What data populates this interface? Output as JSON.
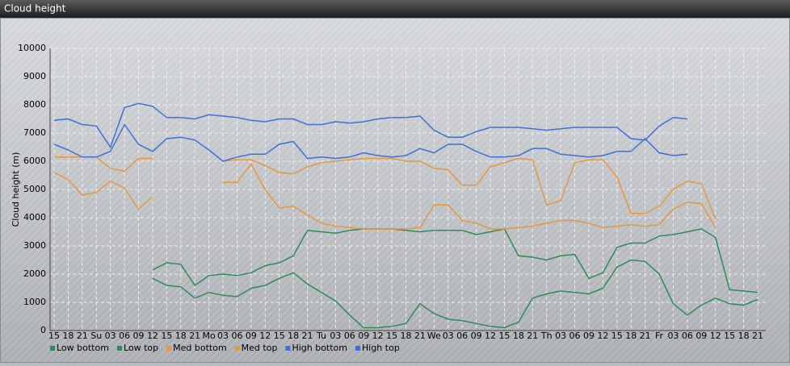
{
  "chart_data": {
    "type": "line",
    "title": "Cloud height",
    "y_label": "Cloud height (m)",
    "categories": [
      "15",
      "18",
      "21",
      "Su",
      "03",
      "06",
      "09",
      "12",
      "15",
      "18",
      "21",
      "Mo",
      "03",
      "06",
      "09",
      "12",
      "15",
      "18",
      "21",
      "Tu",
      "03",
      "06",
      "09",
      "12",
      "15",
      "18",
      "21",
      "We",
      "03",
      "06",
      "09",
      "12",
      "15",
      "18",
      "21",
      "Th",
      "03",
      "06",
      "09",
      "12",
      "15",
      "18",
      "21",
      "Fr",
      "03",
      "06",
      "09",
      "12",
      "15",
      "18",
      "21"
    ],
    "ylim": [
      0,
      10000
    ],
    "yticks": [
      0,
      1000,
      2000,
      3000,
      4000,
      5000,
      6000,
      7000,
      8000,
      9000,
      10000
    ],
    "grid": true,
    "series": [
      {
        "name": "Low bottom",
        "color": "#2e8b57",
        "values": [
          null,
          null,
          null,
          null,
          null,
          null,
          null,
          1850,
          1600,
          1550,
          1150,
          1350,
          1250,
          1200,
          1500,
          1600,
          1850,
          2050,
          1650,
          1350,
          1050,
          550,
          100,
          100,
          150,
          250,
          950,
          600,
          400,
          350,
          250,
          150,
          100,
          300,
          1150,
          1300,
          1400,
          1350,
          1300,
          1500,
          2250,
          2500,
          2450,
          2000,
          950,
          550,
          900,
          1150,
          950,
          900,
          1100
        ]
      },
      {
        "name": "Low top",
        "color": "#2e8b57",
        "values": [
          null,
          null,
          null,
          null,
          null,
          null,
          null,
          2150,
          2400,
          2350,
          1600,
          1950,
          2000,
          1950,
          2050,
          2300,
          2400,
          2650,
          3550,
          3500,
          3450,
          3550,
          3600,
          3600,
          3600,
          3550,
          3500,
          3550,
          3550,
          3550,
          3400,
          3500,
          3600,
          2650,
          2600,
          2500,
          2650,
          2700,
          1850,
          2050,
          2950,
          3100,
          3100,
          3350,
          3400,
          3500,
          3600,
          3300,
          1450,
          1400,
          1350
        ]
      },
      {
        "name": "Med bottom",
        "color": "#e8963c",
        "values": [
          5600,
          5350,
          4800,
          4900,
          5300,
          5050,
          4300,
          4750,
          null,
          null,
          null,
          null,
          5250,
          5250,
          5900,
          5000,
          4350,
          4400,
          4100,
          3800,
          3700,
          3650,
          3600,
          3600,
          3600,
          3600,
          3650,
          4450,
          4450,
          3900,
          3800,
          3600,
          3600,
          3650,
          3700,
          3800,
          3900,
          3900,
          3800,
          3650,
          3700,
          3750,
          3700,
          3750,
          4300,
          4550,
          4500,
          3650,
          null,
          null,
          null
        ]
      },
      {
        "name": "Med top",
        "color": "#e8963c",
        "values": [
          6150,
          6150,
          6150,
          6150,
          5750,
          5650,
          6100,
          6100,
          null,
          null,
          null,
          null,
          6000,
          6050,
          6050,
          5850,
          5600,
          5550,
          5800,
          5950,
          6000,
          6050,
          6100,
          6100,
          6100,
          6000,
          6000,
          5750,
          5700,
          5150,
          5150,
          5800,
          5950,
          6100,
          6050,
          4450,
          4600,
          5950,
          6050,
          6050,
          5450,
          4150,
          4150,
          4400,
          5000,
          5300,
          5200,
          3950,
          null,
          null,
          null
        ]
      },
      {
        "name": "High bottom",
        "color": "#3f6fd8",
        "values": [
          6600,
          6400,
          6150,
          6150,
          6350,
          7300,
          6600,
          6350,
          6800,
          6850,
          6750,
          6400,
          6000,
          6150,
          6250,
          6250,
          6600,
          6700,
          6100,
          6150,
          6100,
          6150,
          6300,
          6200,
          6150,
          6200,
          6450,
          6300,
          6600,
          6600,
          6350,
          6150,
          6150,
          6200,
          6450,
          6450,
          6250,
          6200,
          6150,
          6200,
          6350,
          6350,
          6800,
          6300,
          6200,
          6250,
          null,
          null,
          null,
          null,
          null
        ]
      },
      {
        "name": "High top",
        "color": "#3f6fd8",
        "values": [
          7450,
          7500,
          7300,
          7250,
          6500,
          7900,
          8050,
          7950,
          7550,
          7550,
          7500,
          7650,
          7600,
          7550,
          7450,
          7400,
          7500,
          7500,
          7300,
          7300,
          7400,
          7350,
          7400,
          7500,
          7550,
          7550,
          7600,
          7100,
          6850,
          6850,
          7050,
          7200,
          7200,
          7200,
          7150,
          7100,
          7150,
          7200,
          7200,
          7200,
          7200,
          6800,
          6750,
          7250,
          7550,
          7500,
          null,
          null,
          null,
          null,
          null
        ]
      }
    ]
  }
}
